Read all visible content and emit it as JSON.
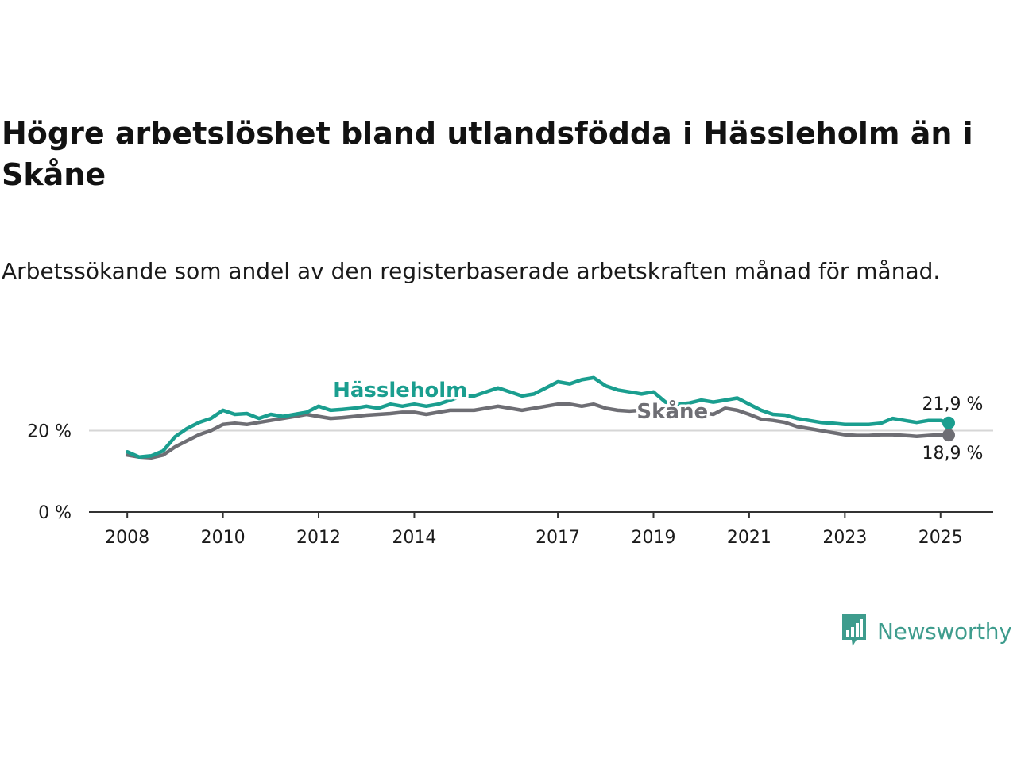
{
  "chart_data": {
    "type": "line",
    "title": "Högre arbetslöshet bland utlandsfödda i Hässleholm än i Skåne",
    "subtitle": "Arbetssökande som andel av den registerbaserade arbetskraften månad för månad.",
    "xlabel": "",
    "ylabel": "",
    "x_ticks": [
      "2008",
      "2010",
      "2012",
      "2014",
      "2017",
      "2019",
      "2021",
      "2023",
      "2025"
    ],
    "y_ticks": [
      {
        "value": 0,
        "label": "0 %"
      },
      {
        "value": 20,
        "label": "20 %"
      }
    ],
    "xlim": [
      2007.2,
      2026.1
    ],
    "ylim": [
      0,
      40
    ],
    "grid": "horizontal",
    "legend": "inline",
    "series": [
      {
        "name": "Hässleholm",
        "color": "#1a9e8f",
        "end_label": "21,9 %",
        "x": [
          2008.0,
          2008.25,
          2008.5,
          2008.75,
          2009.0,
          2009.25,
          2009.5,
          2009.75,
          2010.0,
          2010.25,
          2010.5,
          2010.75,
          2011.0,
          2011.25,
          2011.5,
          2011.75,
          2012.0,
          2012.25,
          2012.5,
          2012.75,
          2013.0,
          2013.25,
          2013.5,
          2013.75,
          2014.0,
          2014.25,
          2014.5,
          2014.75,
          2015.0,
          2015.25,
          2015.5,
          2015.75,
          2016.0,
          2016.25,
          2016.5,
          2016.75,
          2017.0,
          2017.25,
          2017.5,
          2017.75,
          2018.0,
          2018.25,
          2018.5,
          2018.75,
          2019.0,
          2019.25,
          2019.5,
          2019.75,
          2020.0,
          2020.25,
          2020.5,
          2020.75,
          2021.0,
          2021.25,
          2021.5,
          2021.75,
          2022.0,
          2022.25,
          2022.5,
          2022.75,
          2023.0,
          2023.25,
          2023.5,
          2023.75,
          2024.0,
          2024.25,
          2024.5,
          2024.75,
          2025.0,
          2025.17
        ],
        "values": [
          14.8,
          13.5,
          13.8,
          15.0,
          18.5,
          20.5,
          22.0,
          23.0,
          25.0,
          24.0,
          24.2,
          23.0,
          24.0,
          23.5,
          24.0,
          24.5,
          26.0,
          25.0,
          25.2,
          25.5,
          26.0,
          25.5,
          26.5,
          26.0,
          26.5,
          26.0,
          26.5,
          27.5,
          28.5,
          28.5,
          29.5,
          30.5,
          29.5,
          28.5,
          29.0,
          30.5,
          32.0,
          31.5,
          32.5,
          33.0,
          31.0,
          30.0,
          29.5,
          29.0,
          29.5,
          27.0,
          26.5,
          26.8,
          27.5,
          27.0,
          27.5,
          28.0,
          26.5,
          25.0,
          24.0,
          23.8,
          23.0,
          22.5,
          22.0,
          21.8,
          21.5,
          21.5,
          21.5,
          21.8,
          23.0,
          22.5,
          22.0,
          22.5,
          22.5,
          21.9
        ]
      },
      {
        "name": "Skåne",
        "color": "#6e6e74",
        "end_label": "18,9 %",
        "x": [
          2008.0,
          2008.25,
          2008.5,
          2008.75,
          2009.0,
          2009.25,
          2009.5,
          2009.75,
          2010.0,
          2010.25,
          2010.5,
          2010.75,
          2011.0,
          2011.25,
          2011.5,
          2011.75,
          2012.0,
          2012.25,
          2012.5,
          2012.75,
          2013.0,
          2013.25,
          2013.5,
          2013.75,
          2014.0,
          2014.25,
          2014.5,
          2014.75,
          2015.0,
          2015.25,
          2015.5,
          2015.75,
          2016.0,
          2016.25,
          2016.5,
          2016.75,
          2017.0,
          2017.25,
          2017.5,
          2017.75,
          2018.0,
          2018.25,
          2018.5,
          2018.75,
          2019.0,
          2019.25,
          2019.5,
          2019.75,
          2020.0,
          2020.25,
          2020.5,
          2020.75,
          2021.0,
          2021.25,
          2021.5,
          2021.75,
          2022.0,
          2022.25,
          2022.5,
          2022.75,
          2023.0,
          2023.25,
          2023.5,
          2023.75,
          2024.0,
          2024.25,
          2024.5,
          2024.75,
          2025.0,
          2025.17
        ],
        "values": [
          14.0,
          13.5,
          13.3,
          14.0,
          16.0,
          17.5,
          19.0,
          20.0,
          21.5,
          21.8,
          21.5,
          22.0,
          22.5,
          23.0,
          23.5,
          24.0,
          23.5,
          23.0,
          23.2,
          23.5,
          23.8,
          24.0,
          24.2,
          24.5,
          24.5,
          24.0,
          24.5,
          25.0,
          25.0,
          25.0,
          25.5,
          26.0,
          25.5,
          25.0,
          25.5,
          26.0,
          26.5,
          26.5,
          26.0,
          26.5,
          25.5,
          25.0,
          24.8,
          25.0,
          25.0,
          25.0,
          24.5,
          24.5,
          24.5,
          24.0,
          25.5,
          25.0,
          24.0,
          22.8,
          22.5,
          22.0,
          21.0,
          20.5,
          20.0,
          19.5,
          19.0,
          18.8,
          18.8,
          19.0,
          19.0,
          18.8,
          18.6,
          18.8,
          19.0,
          18.9
        ]
      }
    ]
  },
  "brand": {
    "name": "Newsworthy",
    "icon": "newsworthy-logo-icon",
    "color": "#3e9c8d"
  }
}
